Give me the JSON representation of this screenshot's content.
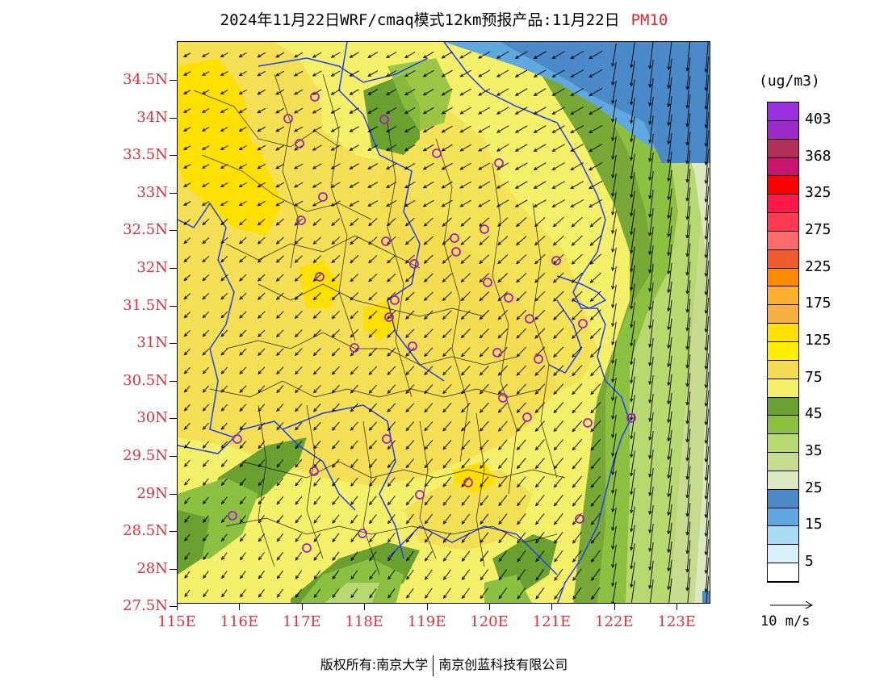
{
  "title": {
    "main": "2024年11月22日WRF/cmaq模式12km预报产品:11月22日",
    "pollutant": "PM10"
  },
  "axes": {
    "lat_labels": [
      "34.5N",
      "34N",
      "33.5N",
      "33N",
      "32.5N",
      "32N",
      "31.5N",
      "31N",
      "30.5N",
      "30N",
      "29.5N",
      "29N",
      "28.5N",
      "28N",
      "27.5N"
    ],
    "lon_labels": [
      "115E",
      "116E",
      "117E",
      "118E",
      "119E",
      "120E",
      "121E",
      "122E",
      "123E"
    ]
  },
  "legend": {
    "unit": "(ug/m3)",
    "swatches": [
      "#9a30e0",
      "#9d2bc9",
      "#b0305a",
      "#c8146e",
      "#ff0000",
      "#ff1848",
      "#ff3a52",
      "#ff6a6a",
      "#f05a30",
      "#ff8c00",
      "#ffb030",
      "#f8b040",
      "#ffe000",
      "#fff000",
      "#f4dc50",
      "#f4f06a",
      "#6aa030",
      "#8cc040",
      "#b8d870",
      "#c8dc90",
      "#dce8c0",
      "#4a8ac8",
      "#60a8e0",
      "#a8dcf4",
      "#d8f0f8",
      "#ffffff"
    ],
    "labels": [
      "403",
      "368",
      "325",
      "275",
      "225",
      "175",
      "125",
      "75",
      "45",
      "35",
      "25",
      "15",
      "5"
    ]
  },
  "wind_reference": {
    "label": "10 m/s"
  },
  "footer": {
    "copyright": "版权所有:南京大学",
    "company": "南京创蓝科技有限公司"
  },
  "map": {
    "colors": {
      "sea_dark": "#4a8ac8",
      "sea_light": "#60a8e0",
      "yellow_base": "#f4f06a",
      "yellow_dark": "#f4dc50",
      "yellow_bright": "#ffe000",
      "green_dark": "#6aa030",
      "green_mid": "#8cc040",
      "green_light": "#b8d870",
      "green_pale": "#c8dc90",
      "green_faint": "#dce8c0",
      "boundary_blue": "#2040f0",
      "station": "#a020c0"
    }
  }
}
